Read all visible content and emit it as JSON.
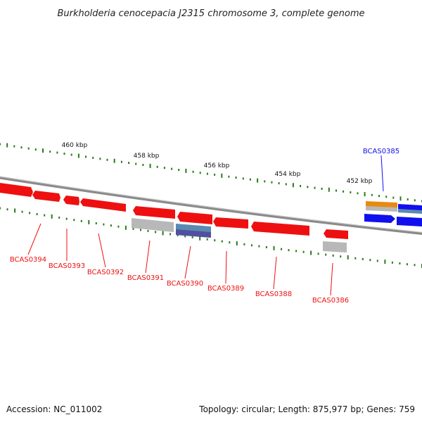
{
  "title": "Burkholderia cenocepacia J2315 chromosome 3, complete genome",
  "footer": {
    "accession": "Accession: NC_011002",
    "summary": "Topology: circular; Length: 875,977 bp; Genes: 759"
  },
  "scale_labels": [
    "460 kbp",
    "458 kbp",
    "456 kbp",
    "454 kbp",
    "452 kbp"
  ],
  "colors": {
    "backbone": "#808080",
    "tick": "#2a7a1a",
    "forward_gene": "#1010ee",
    "reverse_gene": "#ee1010",
    "orange_feature": "#e88a10",
    "grey_feature": "#b8b8b8",
    "steel_feature": "#5a8ab0",
    "purple_feature": "#5050a0"
  },
  "genes": [
    {
      "id": "BCAS0385",
      "strand": "forward"
    },
    {
      "id": "BCAS0386",
      "strand": "reverse"
    },
    {
      "id": "BCAS0388",
      "strand": "reverse"
    },
    {
      "id": "BCAS0389",
      "strand": "reverse"
    },
    {
      "id": "BCAS0390",
      "strand": "reverse"
    },
    {
      "id": "BCAS0391",
      "strand": "reverse"
    },
    {
      "id": "BCAS0392",
      "strand": "reverse"
    },
    {
      "id": "BCAS0393",
      "strand": "reverse"
    },
    {
      "id": "BCAS0394",
      "strand": "reverse"
    }
  ]
}
